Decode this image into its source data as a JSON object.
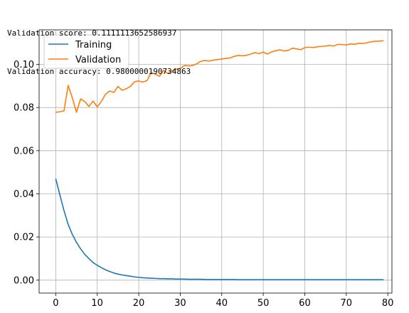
{
  "console": {
    "lines": [
      "Validation score: 0.1111113652586937",
      "Validation accuracy: 0.9800000190734863"
    ]
  },
  "chart_data": {
    "type": "line",
    "title": "",
    "xlabel": "",
    "ylabel": "",
    "xlim": [
      -4,
      81
    ],
    "ylim": [
      -0.006,
      0.116
    ],
    "xticks": [
      "0",
      "10",
      "20",
      "30",
      "40",
      "50",
      "60",
      "70",
      "80"
    ],
    "yticks": [
      "0.00",
      "0.02",
      "0.04",
      "0.06",
      "0.08",
      "0.10"
    ],
    "grid": true,
    "legend": "top-left",
    "series": [
      {
        "name": "Training",
        "color": "#1f77b4",
        "x": [
          0,
          1,
          2,
          3,
          4,
          5,
          6,
          7,
          8,
          9,
          10,
          11,
          12,
          13,
          14,
          15,
          16,
          17,
          18,
          19,
          20,
          21,
          22,
          23,
          24,
          25,
          26,
          27,
          28,
          29,
          30,
          31,
          32,
          33,
          34,
          35,
          36,
          37,
          38,
          39,
          40,
          41,
          42,
          43,
          44,
          45,
          46,
          47,
          48,
          49,
          50,
          51,
          52,
          53,
          54,
          55,
          56,
          57,
          58,
          59,
          60,
          61,
          62,
          63,
          64,
          65,
          66,
          67,
          68,
          69,
          70,
          71,
          72,
          73,
          74,
          75,
          76,
          77,
          78,
          79
        ],
        "values": [
          0.047,
          0.0395,
          0.0322,
          0.0258,
          0.0212,
          0.0175,
          0.0145,
          0.0119,
          0.01,
          0.0081,
          0.0069,
          0.0058,
          0.0048,
          0.004,
          0.0033,
          0.0028,
          0.0024,
          0.0021,
          0.0018,
          0.0015,
          0.0013,
          0.0011,
          0.001,
          0.0009,
          0.0008,
          0.0007,
          0.0007,
          0.0006,
          0.0006,
          0.0005,
          0.0005,
          0.0005,
          0.0004,
          0.0004,
          0.0004,
          0.0004,
          0.0003,
          0.0003,
          0.0003,
          0.0003,
          0.0003,
          0.0003,
          0.0003,
          0.0003,
          0.0002,
          0.0002,
          0.0002,
          0.0002,
          0.0002,
          0.0002,
          0.0002,
          0.0002,
          0.0002,
          0.0002,
          0.0002,
          0.0002,
          0.0002,
          0.0002,
          0.0002,
          0.0002,
          0.0002,
          0.0002,
          0.0002,
          0.0002,
          0.0002,
          0.0002,
          0.0002,
          0.0002,
          0.0002,
          0.0002,
          0.0002,
          0.0002,
          0.0002,
          0.0002,
          0.0002,
          0.0002,
          0.0002,
          0.0002,
          0.0002,
          0.0002
        ]
      },
      {
        "name": "Validation",
        "color": "#ff7f0e",
        "x": [
          0,
          1,
          2,
          3,
          4,
          5,
          6,
          7,
          8,
          9,
          10,
          11,
          12,
          13,
          14,
          15,
          16,
          17,
          18,
          19,
          20,
          21,
          22,
          23,
          24,
          25,
          26,
          27,
          28,
          29,
          30,
          31,
          32,
          33,
          34,
          35,
          36,
          37,
          38,
          39,
          40,
          41,
          42,
          43,
          44,
          45,
          46,
          47,
          48,
          49,
          50,
          51,
          52,
          53,
          54,
          55,
          56,
          57,
          58,
          59,
          60,
          61,
          62,
          63,
          64,
          65,
          66,
          67,
          68,
          69,
          70,
          71,
          72,
          73,
          74,
          75,
          76,
          77,
          78,
          79
        ],
        "values": [
          0.0778,
          0.078,
          0.0785,
          0.0903,
          0.0845,
          0.0778,
          0.084,
          0.0828,
          0.0805,
          0.083,
          0.0803,
          0.0828,
          0.0862,
          0.0877,
          0.087,
          0.0898,
          0.088,
          0.0887,
          0.0898,
          0.092,
          0.0923,
          0.0918,
          0.0925,
          0.0962,
          0.0955,
          0.0945,
          0.0972,
          0.0958,
          0.097,
          0.0978,
          0.098,
          0.0995,
          0.0993,
          0.0995,
          0.1003,
          0.1015,
          0.1018,
          0.1015,
          0.102,
          0.1022,
          0.1025,
          0.1028,
          0.103,
          0.1037,
          0.1042,
          0.104,
          0.1042,
          0.1048,
          0.1055,
          0.105,
          0.1057,
          0.1048,
          0.1058,
          0.1063,
          0.1068,
          0.1062,
          0.1065,
          0.1075,
          0.1072,
          0.1068,
          0.1078,
          0.108,
          0.1078,
          0.1082,
          0.1083,
          0.1085,
          0.1088,
          0.1085,
          0.1093,
          0.1092,
          0.109,
          0.1095,
          0.1093,
          0.1098,
          0.1097,
          0.11,
          0.1105,
          0.1107,
          0.1108,
          0.111
        ]
      }
    ]
  }
}
